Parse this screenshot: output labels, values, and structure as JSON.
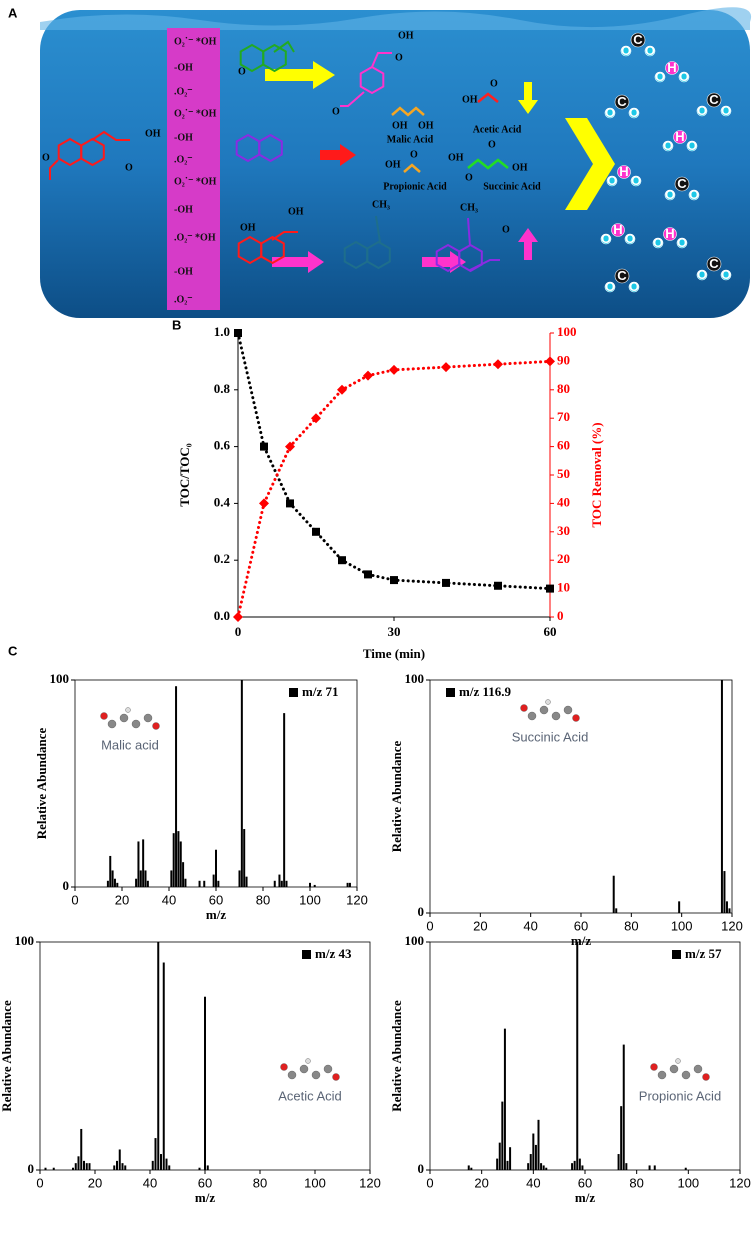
{
  "figure": {
    "panel_labels": [
      "A",
      "B",
      "C"
    ]
  },
  "diagram": {
    "radical_column": [
      "O₂˙⁻ *OH",
      "-OH",
      ".O₂⁻",
      "O₂˙⁻ *OH",
      "-OH",
      ".O₂⁻",
      "O₂˙⁻ *OH",
      "-OH",
      ".O₂⁻ *OH",
      "-OH",
      ".O₂⁻"
    ],
    "products": [
      "Malic Acid",
      "Acetic Acid",
      "Propionic Acid",
      "Succinic Acid"
    ],
    "groups": {
      "hydroxyl": "OH",
      "oxo": "O",
      "methyl": "CH₃"
    },
    "atoms": {
      "carbon": "C",
      "hydrogen": "H",
      "oxygen": "O"
    }
  },
  "chart_data": [
    {
      "type": "line",
      "x_label": "Time (min)",
      "y_label": "TOC/TOC₀",
      "y2_label": "TOC Removal (%)",
      "xlim": [
        0,
        60
      ],
      "xticks": [
        0,
        30,
        60
      ],
      "ylim": [
        0,
        1
      ],
      "yticks": [
        {
          "value": 0,
          "label": "0.0"
        },
        0.2,
        0.4,
        0.6,
        0.8,
        {
          "value": 1,
          "label": "1.0"
        }
      ],
      "y2lim": [
        0,
        100
      ],
      "y2ticks": [
        0,
        10,
        20,
        30,
        40,
        50,
        60,
        70,
        80,
        90,
        100
      ],
      "line_style": "dotted",
      "x": [
        0,
        5,
        10,
        15,
        20,
        25,
        30,
        40,
        50,
        60
      ],
      "series": [
        {
          "color": "#000000",
          "marker": "square",
          "values": [
            1.0,
            0.6,
            0.4,
            0.3,
            0.2,
            0.15,
            0.13,
            0.12,
            0.11,
            0.1
          ]
        },
        {
          "color": "#ff0000",
          "marker": "diamond",
          "axis": "y2",
          "values": [
            0,
            40,
            60,
            70,
            80,
            85,
            87,
            88,
            89,
            90
          ]
        }
      ]
    },
    {
      "type": "bar",
      "annotation": "Malic acid",
      "x_label": "m/z",
      "y_label": "Relative Abundance",
      "xlim": [
        0,
        120
      ],
      "xticks": [
        0,
        20,
        40,
        60,
        80,
        100,
        120
      ],
      "ylim": [
        0,
        100
      ],
      "yticks": [
        0,
        100
      ],
      "legend": "top-right",
      "x": [
        14,
        15,
        16,
        17,
        18,
        26,
        27,
        28,
        29,
        30,
        31,
        41,
        42,
        43,
        44,
        45,
        46,
        47,
        53,
        55,
        59,
        60,
        61,
        70,
        71,
        72,
        73,
        85,
        87,
        88,
        89,
        90,
        100,
        102,
        116,
        117
      ],
      "series": [
        {
          "name": "m/z 71",
          "color": "#000000",
          "values": [
            3,
            15,
            8,
            4,
            2,
            4,
            22,
            8,
            23,
            8,
            3,
            8,
            26,
            97,
            27,
            22,
            12,
            4,
            3,
            3,
            6,
            18,
            3,
            8,
            100,
            28,
            5,
            3,
            6,
            3,
            84,
            3,
            2,
            1,
            2,
            2
          ]
        }
      ]
    },
    {
      "type": "bar",
      "annotation": "Succinic Acid",
      "x_label": "m/z",
      "y_label": "Relative Abundance",
      "xlim": [
        0,
        120
      ],
      "xticks": [
        0,
        20,
        40,
        60,
        80,
        100,
        120
      ],
      "ylim": [
        0,
        100
      ],
      "yticks": [
        0,
        100
      ],
      "legend": "top-left",
      "x": [
        73,
        74,
        99,
        116,
        117,
        118,
        119
      ],
      "series": [
        {
          "name": "m/z 116.9",
          "color": "#000000",
          "values": [
            16,
            2,
            5,
            100,
            18,
            5,
            2
          ]
        }
      ]
    },
    {
      "type": "bar",
      "annotation": "Acetic Acid",
      "x_label": "m/z",
      "y_label": "Relative Abundance",
      "xlim": [
        0,
        120
      ],
      "xticks": [
        0,
        20,
        40,
        60,
        80,
        100,
        120
      ],
      "ylim": [
        0,
        100
      ],
      "yticks": [
        0,
        100
      ],
      "legend": "top-right",
      "x": [
        2,
        5,
        12,
        13,
        14,
        15,
        16,
        17,
        18,
        27,
        28,
        29,
        30,
        31,
        41,
        42,
        43,
        44,
        45,
        46,
        47,
        58,
        60,
        61
      ],
      "series": [
        {
          "name": "m/z 43",
          "color": "#000000",
          "values": [
            1,
            1,
            1,
            3,
            6,
            18,
            4,
            3,
            3,
            2,
            4,
            9,
            3,
            2,
            4,
            14,
            100,
            7,
            91,
            5,
            2,
            1,
            76,
            2
          ]
        }
      ]
    },
    {
      "type": "bar",
      "annotation": "Propionic Acid",
      "x_label": "m/z",
      "y_label": "Relative Abundance",
      "xlim": [
        0,
        120
      ],
      "xticks": [
        0,
        20,
        40,
        60,
        80,
        100,
        120
      ],
      "ylim": [
        0,
        100
      ],
      "yticks": [
        0,
        100
      ],
      "legend": "top-right",
      "x": [
        15,
        16,
        26,
        27,
        28,
        29,
        30,
        31,
        38,
        39,
        40,
        41,
        42,
        43,
        44,
        45,
        55,
        56,
        57,
        58,
        59,
        73,
        74,
        75,
        76,
        85,
        87,
        99
      ],
      "series": [
        {
          "name": "m/z 57",
          "color": "#000000",
          "values": [
            2,
            1,
            5,
            12,
            30,
            62,
            4,
            10,
            3,
            7,
            16,
            11,
            22,
            3,
            2,
            1,
            3,
            4,
            100,
            5,
            2,
            7,
            28,
            55,
            3,
            2,
            2,
            1
          ]
        }
      ]
    }
  ]
}
